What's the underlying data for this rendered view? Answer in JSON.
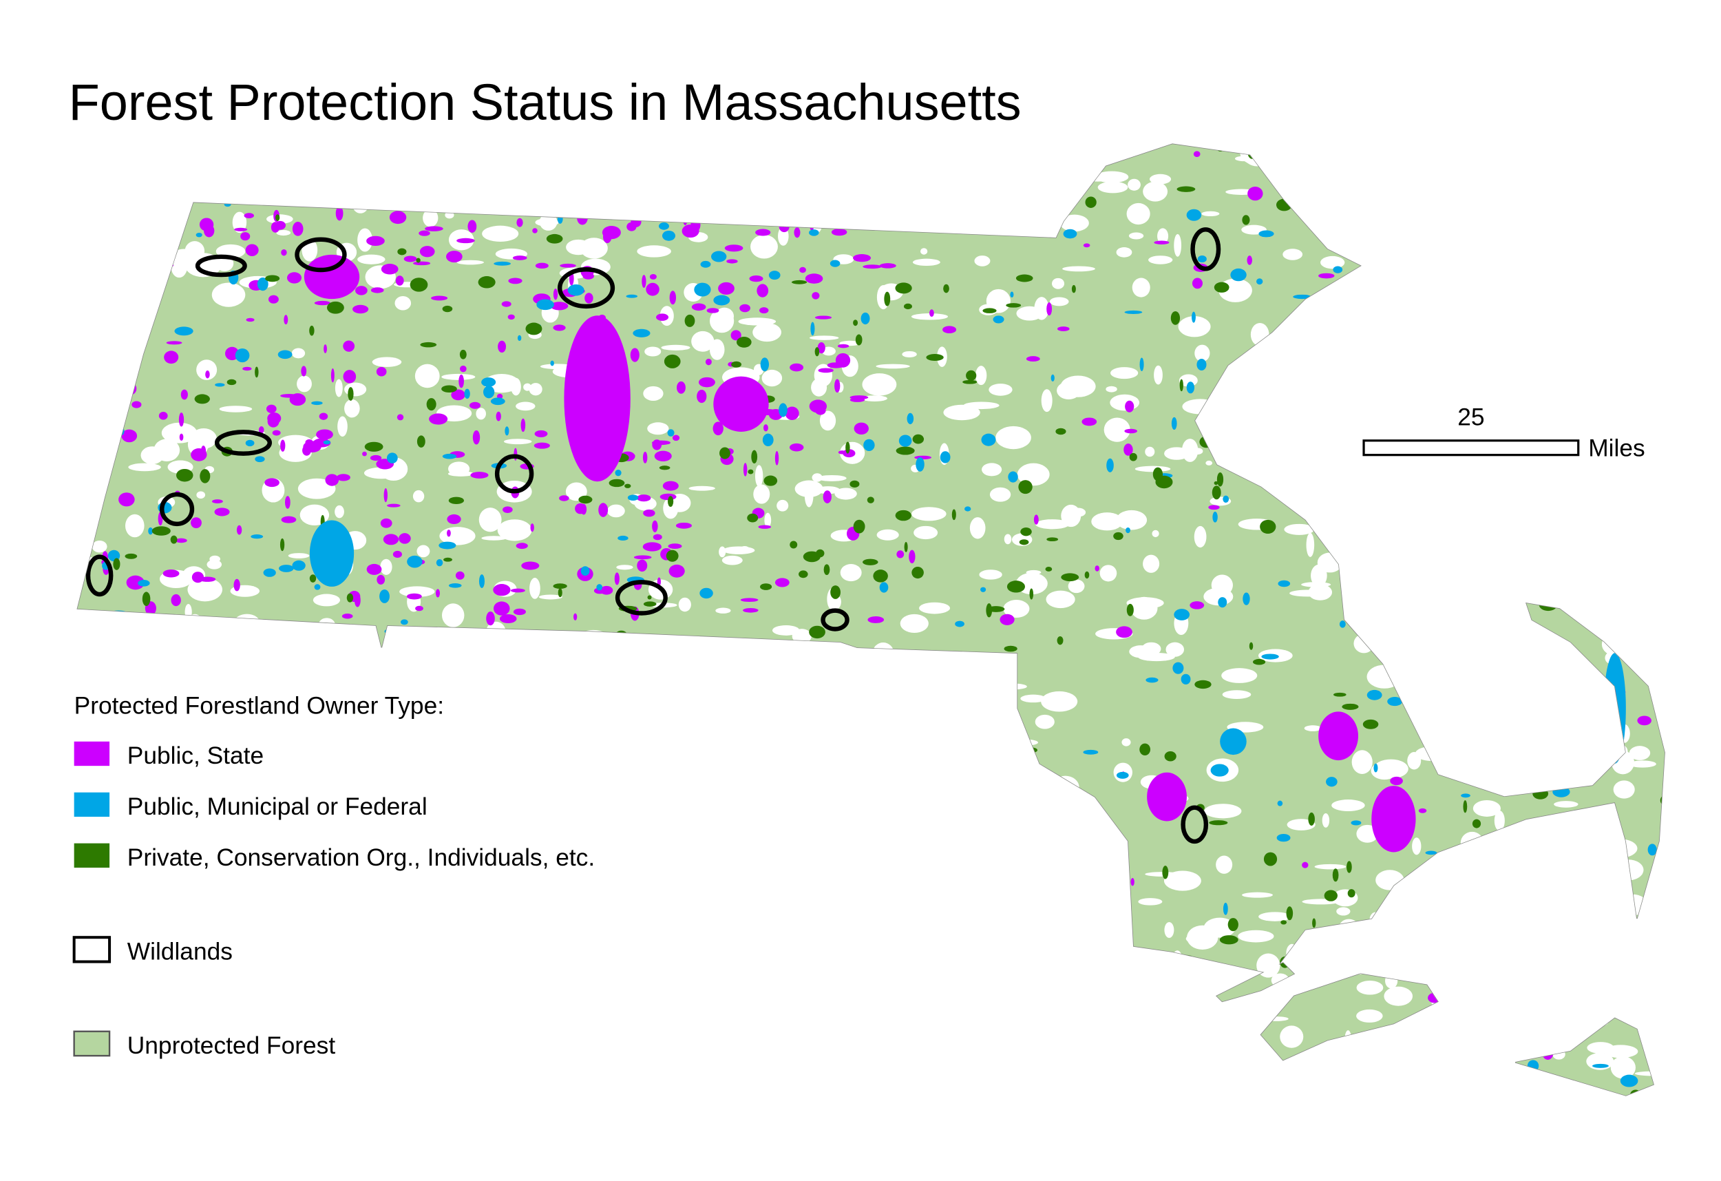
{
  "title": "Forest Protection Status in Massachusetts",
  "legend": {
    "title": "Protected Forestland Owner Type:",
    "items": [
      {
        "label": "Public, State",
        "color": "#cc00ff",
        "symbol": "fill"
      },
      {
        "label": "Public, Municipal or Federal",
        "color": "#00a6e6",
        "symbol": "fill"
      },
      {
        "label": "Private, Conservation Org., Individuals, etc.",
        "color": "#2d7a00",
        "symbol": "fill"
      },
      {
        "label": "Wildlands",
        "color": "#000000",
        "symbol": "outline"
      },
      {
        "label": "Unprotected Forest",
        "color": "#b5d6a0",
        "symbol": "fill"
      }
    ]
  },
  "scale_bar": {
    "label": "25",
    "unit": "Miles"
  }
}
